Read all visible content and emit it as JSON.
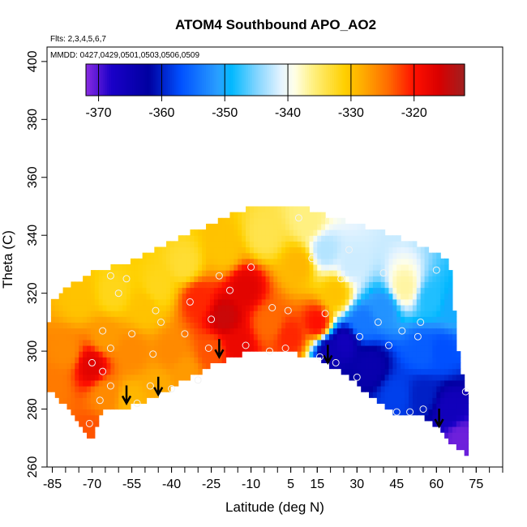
{
  "chart_data": {
    "type": "heatmap",
    "title": "ATOM4 Southbound APO_AO2",
    "flights_note": "Flts: 2,3,4,5,6,7",
    "dates_note": "MMDD: 0427,0429,0501,0503,0506,0509",
    "xlabel": "Latitude (deg N)",
    "ylabel": "Theta (C)",
    "xlim": [
      -87,
      85
    ],
    "ylim": [
      260,
      405
    ],
    "x_ticks": [
      -85,
      -70,
      -55,
      -40,
      -25,
      -10,
      5,
      15,
      30,
      45,
      60,
      75
    ],
    "x_tick_labels": [
      "-85",
      "-70",
      "-55",
      "-40",
      "-25",
      "-10",
      "5",
      "15",
      "30",
      "45",
      "60",
      "75"
    ],
    "y_ticks": [
      260,
      280,
      300,
      320,
      340,
      360,
      380,
      400
    ],
    "y_tick_labels": [
      "260",
      "280",
      "300",
      "320",
      "340",
      "360",
      "380",
      "400"
    ],
    "colorbar": {
      "range": [
        -372,
        -312
      ],
      "ticks": [
        -370,
        -360,
        -350,
        -340,
        -330,
        -320
      ],
      "tick_labels": [
        "-370",
        "-360",
        "-350",
        "-340",
        "-330",
        "-320"
      ],
      "stops": [
        {
          "value": -372,
          "color": "#8a2be2"
        },
        {
          "value": -368,
          "color": "#1a00c8"
        },
        {
          "value": -362,
          "color": "#0000a0"
        },
        {
          "value": -357,
          "color": "#0050ff"
        },
        {
          "value": -351,
          "color": "#2aa0ff"
        },
        {
          "value": -349,
          "color": "#00b8ff"
        },
        {
          "value": -345,
          "color": "#80d4ff"
        },
        {
          "value": -341,
          "color": "#e6f4ff"
        },
        {
          "value": -339,
          "color": "#ffffe8"
        },
        {
          "value": -336,
          "color": "#fff080"
        },
        {
          "value": -331,
          "color": "#ffd000"
        },
        {
          "value": -328,
          "color": "#ffaa00"
        },
        {
          "value": -324,
          "color": "#ff6a00"
        },
        {
          "value": -320,
          "color": "#ff1000"
        },
        {
          "value": -316,
          "color": "#d80000"
        },
        {
          "value": -312,
          "color": "#a02020"
        }
      ]
    },
    "boundary": {
      "lower": [
        [
          -87,
          287
        ],
        [
          -78,
          280
        ],
        [
          -72,
          271
        ],
        [
          -70,
          269
        ],
        [
          -66,
          280
        ],
        [
          -55,
          281
        ],
        [
          -45,
          285
        ],
        [
          -35,
          290
        ],
        [
          -25,
          295
        ],
        [
          -10,
          300
        ],
        [
          0,
          300
        ],
        [
          15,
          298
        ],
        [
          25,
          292
        ],
        [
          35,
          285
        ],
        [
          45,
          278
        ],
        [
          55,
          278
        ],
        [
          62,
          272
        ],
        [
          68,
          266
        ],
        [
          71,
          265
        ]
      ],
      "upper": [
        [
          71,
          285
        ],
        [
          68,
          300
        ],
        [
          66,
          320
        ],
        [
          65,
          330
        ],
        [
          55,
          335
        ],
        [
          40,
          340
        ],
        [
          30,
          343
        ],
        [
          15,
          347
        ],
        [
          5,
          350
        ],
        [
          -5,
          350
        ],
        [
          -15,
          347
        ],
        [
          -25,
          343
        ],
        [
          -40,
          337
        ],
        [
          -55,
          330
        ],
        [
          -70,
          326
        ],
        [
          -78,
          322
        ],
        [
          -85,
          316
        ],
        [
          -87,
          305
        ]
      ]
    },
    "field_anchors": [
      {
        "lat": -85,
        "theta": 288,
        "value": -325
      },
      {
        "lat": -80,
        "theta": 300,
        "value": -326
      },
      {
        "lat": -75,
        "theta": 318,
        "value": -330
      },
      {
        "lat": -70,
        "theta": 272,
        "value": -323
      },
      {
        "lat": -70,
        "theta": 295,
        "value": -317
      },
      {
        "lat": -65,
        "theta": 285,
        "value": -326
      },
      {
        "lat": -65,
        "theta": 305,
        "value": -327
      },
      {
        "lat": -62,
        "theta": 320,
        "value": -332
      },
      {
        "lat": -55,
        "theta": 283,
        "value": -329
      },
      {
        "lat": -55,
        "theta": 300,
        "value": -326
      },
      {
        "lat": -50,
        "theta": 315,
        "value": -330
      },
      {
        "lat": -45,
        "theta": 288,
        "value": -328
      },
      {
        "lat": -45,
        "theta": 322,
        "value": -332
      },
      {
        "lat": -40,
        "theta": 300,
        "value": -326
      },
      {
        "lat": -35,
        "theta": 293,
        "value": -327
      },
      {
        "lat": -35,
        "theta": 330,
        "value": -333
      },
      {
        "lat": -30,
        "theta": 318,
        "value": -321
      },
      {
        "lat": -25,
        "theta": 300,
        "value": -323
      },
      {
        "lat": -20,
        "theta": 312,
        "value": -315
      },
      {
        "lat": -20,
        "theta": 335,
        "value": -330
      },
      {
        "lat": -15,
        "theta": 302,
        "value": -318
      },
      {
        "lat": -12,
        "theta": 322,
        "value": -317
      },
      {
        "lat": -5,
        "theta": 340,
        "value": -334
      },
      {
        "lat": -3,
        "theta": 310,
        "value": -324
      },
      {
        "lat": 5,
        "theta": 305,
        "value": -321
      },
      {
        "lat": 8,
        "theta": 330,
        "value": -329
      },
      {
        "lat": 12,
        "theta": 345,
        "value": -336
      },
      {
        "lat": 15,
        "theta": 310,
        "value": -320
      },
      {
        "lat": 18,
        "theta": 335,
        "value": -343
      },
      {
        "lat": 20,
        "theta": 300,
        "value": -365
      },
      {
        "lat": 22,
        "theta": 320,
        "value": -330
      },
      {
        "lat": 25,
        "theta": 303,
        "value": -366
      },
      {
        "lat": 28,
        "theta": 330,
        "value": -342
      },
      {
        "lat": 32,
        "theta": 310,
        "value": -354
      },
      {
        "lat": 35,
        "theta": 295,
        "value": -364
      },
      {
        "lat": 40,
        "theta": 315,
        "value": -352
      },
      {
        "lat": 45,
        "theta": 285,
        "value": -358
      },
      {
        "lat": 48,
        "theta": 322,
        "value": -337
      },
      {
        "lat": 55,
        "theta": 300,
        "value": -356
      },
      {
        "lat": 55,
        "theta": 285,
        "value": -360
      },
      {
        "lat": 58,
        "theta": 318,
        "value": -348
      },
      {
        "lat": 62,
        "theta": 300,
        "value": -357
      },
      {
        "lat": 65,
        "theta": 280,
        "value": -366
      },
      {
        "lat": 69,
        "theta": 270,
        "value": -371
      },
      {
        "lat": 66,
        "theta": 315,
        "value": -350
      }
    ],
    "sample_points": [
      {
        "lat": -71,
        "theta": 275
      },
      {
        "lat": -67,
        "theta": 283
      },
      {
        "lat": -63,
        "theta": 288
      },
      {
        "lat": -66,
        "theta": 293
      },
      {
        "lat": -70,
        "theta": 296
      },
      {
        "lat": -63,
        "theta": 301
      },
      {
        "lat": -66,
        "theta": 307
      },
      {
        "lat": -60,
        "theta": 320
      },
      {
        "lat": -63,
        "theta": 326
      },
      {
        "lat": -57,
        "theta": 325
      },
      {
        "lat": -55,
        "theta": 306
      },
      {
        "lat": -47,
        "theta": 299
      },
      {
        "lat": -53,
        "theta": 282
      },
      {
        "lat": -48,
        "theta": 288
      },
      {
        "lat": -44,
        "theta": 310
      },
      {
        "lat": -46,
        "theta": 314
      },
      {
        "lat": -40,
        "theta": 287
      },
      {
        "lat": -35,
        "theta": 306
      },
      {
        "lat": -33,
        "theta": 317
      },
      {
        "lat": -30,
        "theta": 290
      },
      {
        "lat": -26,
        "theta": 301
      },
      {
        "lat": -25,
        "theta": 311
      },
      {
        "lat": -22,
        "theta": 326
      },
      {
        "lat": -18,
        "theta": 321
      },
      {
        "lat": -12,
        "theta": 302
      },
      {
        "lat": -10,
        "theta": 329
      },
      {
        "lat": -3,
        "theta": 300
      },
      {
        "lat": -2,
        "theta": 315
      },
      {
        "lat": 3,
        "theta": 301
      },
      {
        "lat": 4,
        "theta": 314
      },
      {
        "lat": 8,
        "theta": 346
      },
      {
        "lat": 13,
        "theta": 332
      },
      {
        "lat": 16,
        "theta": 298
      },
      {
        "lat": 18,
        "theta": 313
      },
      {
        "lat": 22,
        "theta": 296
      },
      {
        "lat": 24,
        "theta": 325
      },
      {
        "lat": 27,
        "theta": 335
      },
      {
        "lat": 30,
        "theta": 291
      },
      {
        "lat": 31,
        "theta": 305
      },
      {
        "lat": 38,
        "theta": 310
      },
      {
        "lat": 40,
        "theta": 327
      },
      {
        "lat": 42,
        "theta": 302
      },
      {
        "lat": 45,
        "theta": 279
      },
      {
        "lat": 47,
        "theta": 307
      },
      {
        "lat": 50,
        "theta": 279
      },
      {
        "lat": 53,
        "theta": 305
      },
      {
        "lat": 54,
        "theta": 310
      },
      {
        "lat": 55,
        "theta": 280
      },
      {
        "lat": 60,
        "theta": 328
      },
      {
        "lat": 71,
        "theta": 286
      }
    ],
    "arrows": [
      {
        "lat": -57,
        "theta": 282
      },
      {
        "lat": -45,
        "theta": 285
      },
      {
        "lat": -22,
        "theta": 298
      },
      {
        "lat": 19,
        "theta": 296
      },
      {
        "lat": 61,
        "theta": 274
      }
    ]
  }
}
